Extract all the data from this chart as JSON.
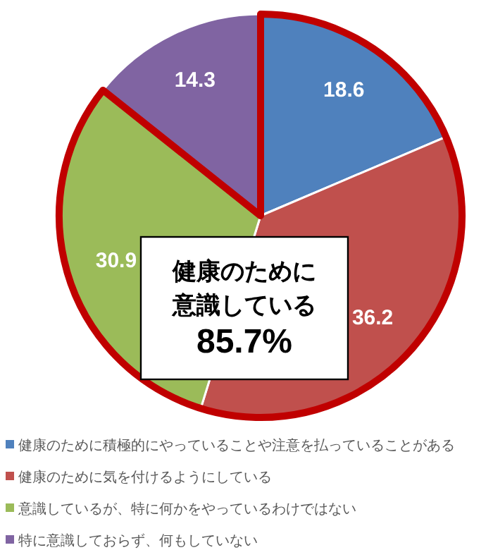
{
  "chart_data": {
    "type": "pie",
    "categories": [
      "健康のために積極的にやっていることや注意を払っていることがある",
      "健康のために気を付けるようにしている",
      "意識しているが、特に何かをやっているわけではない",
      "特に意識しておらず、何もしていない"
    ],
    "values": [
      18.6,
      36.2,
      30.9,
      14.3
    ],
    "colors": [
      "#4f81bd",
      "#c0504d",
      "#9bbb59",
      "#8064a2"
    ],
    "data_labels": true,
    "legend": "bottom",
    "annotations": [
      "健康のために",
      "意識している",
      "85.7%"
    ]
  }
}
